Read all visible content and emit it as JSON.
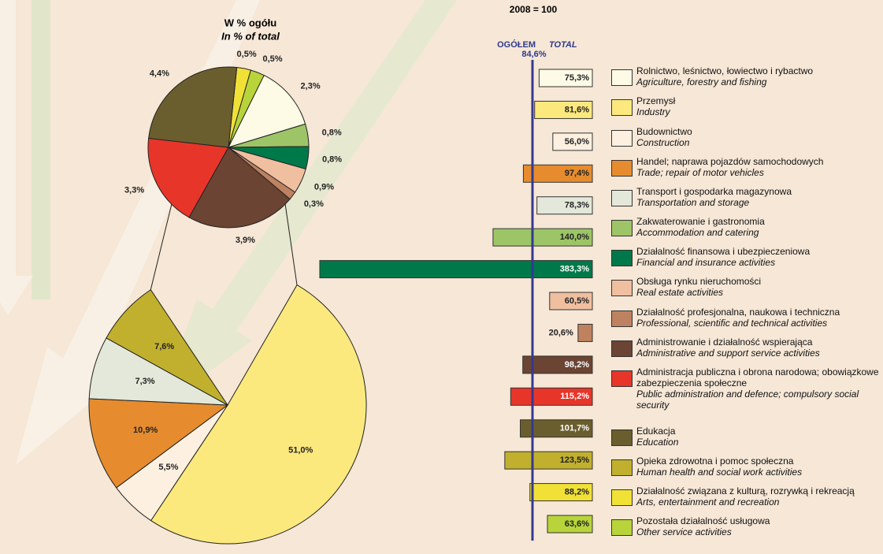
{
  "chart_data": [
    {
      "type": "pie",
      "title": "W % ogółu",
      "subtitle": "In % of total",
      "categories": [
        "Rolnictwo, leśnictwo, łowiectwo i rybactwo",
        "Przemysł",
        "Budownictwo",
        "Handel; naprawa pojazdów samochodowych",
        "Transport i gospodarka magazynowa",
        "Zakwaterowanie i gastronomia",
        "Działalność finansowa i ubezpieczeniowa",
        "Obsługa rynku nieruchomości",
        "Działalność profesjonalna, naukowa i techniczna",
        "Administrowanie i działalność wspierająca",
        "Administracja publiczna i obrona narodowa; obowiązkowe zabezpieczenia społeczne",
        "Edukacja",
        "Opieka zdrowotna i pomoc społeczna",
        "Działalność związana z kulturą, rozrywką i rekreacją",
        "Pozostała działalność usługowa"
      ],
      "categories_en": [
        "Agriculture, forestry and fishing",
        "Industry",
        "Construction",
        "Trade; repair of motor vehicles",
        "Transportation and storage",
        "Accommodation and catering",
        "Financial and insurance activities",
        "Real estate activities",
        "Professional, scientific and  technical activities",
        "Administrative and support service activities",
        "Public administration and defence; compulsory social security",
        "Education",
        "Human health and social work activities",
        "Arts, entertainment and recreation",
        "Other service activities"
      ],
      "colors": [
        "#fdfbe6",
        "#fce97e",
        "#fdf0e0",
        "#e68c2e",
        "#e3e8da",
        "#9dc567",
        "#00794a",
        "#efbfa0",
        "#be8260",
        "#6b4434",
        "#e8352a",
        "#6b5e2e",
        "#c1b02d",
        "#f1e136",
        "#b8d43a"
      ],
      "values": [
        2.3,
        51.0,
        5.5,
        10.9,
        7.3,
        0.8,
        0.8,
        0.9,
        0.3,
        3.9,
        3.3,
        4.4,
        7.6,
        0.5,
        0.5
      ],
      "value_labels": [
        "2,3%",
        "51,0%",
        "5,5%",
        "10,9%",
        "7,3%",
        "0,8%",
        "0,8%",
        "0,9%",
        "0,3%",
        "3,9%",
        "3,3%",
        "4,4%",
        "7,6%",
        "0,5%",
        "0,5%"
      ]
    },
    {
      "type": "bar",
      "title": "2008 = 100",
      "total_label": "OGÓŁEM",
      "total_label_en": "TOTAL",
      "total": 84.6,
      "total_value_label": "84,6%",
      "values": [
        75.3,
        81.6,
        56.0,
        97.4,
        78.3,
        140.0,
        383.3,
        60.5,
        20.6,
        98.2,
        115.2,
        101.7,
        123.5,
        88.2,
        63.6
      ],
      "value_labels": [
        "75,3%",
        "81,6%",
        "56,0%",
        "97,4%",
        "78,3%",
        "140,0%",
        "383,3%",
        "60,5%",
        "20,6%",
        "98,2%",
        "115,2%",
        "101,7%",
        "123,5%",
        "88,2%",
        "63,6%"
      ]
    }
  ]
}
